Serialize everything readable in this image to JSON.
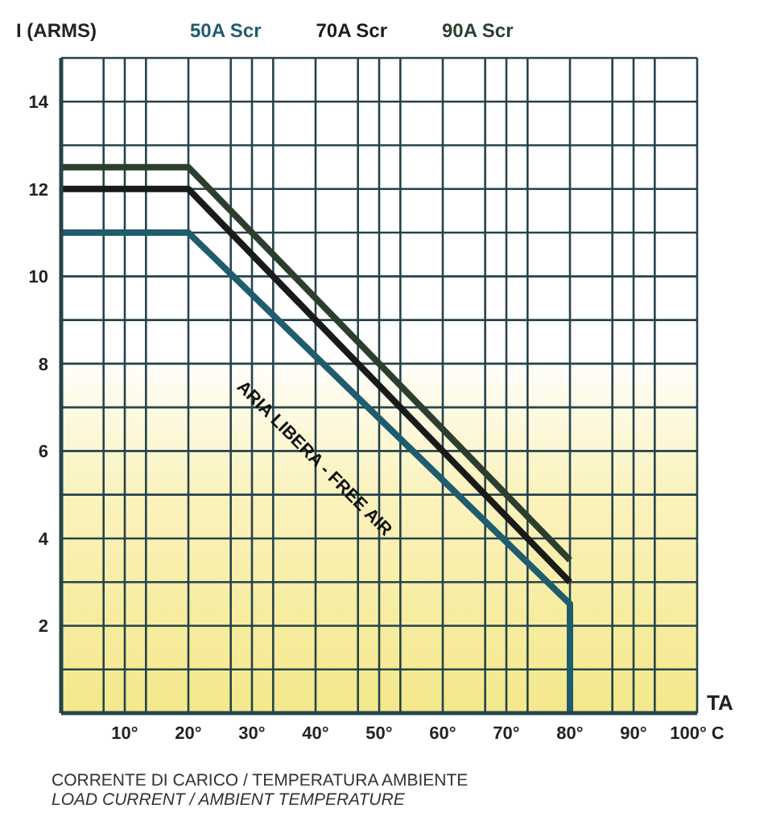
{
  "chart_data": {
    "type": "line",
    "ylabel": "I (ARMS)",
    "xlabel": "TA",
    "series": [
      {
        "name": "50A Scr",
        "color": "#1f5c6e",
        "x": [
          0,
          20,
          80,
          80
        ],
        "values": [
          11,
          11,
          2.5,
          0
        ]
      },
      {
        "name": "70A Scr",
        "color": "#1a1a1a",
        "x": [
          0,
          20,
          80
        ],
        "values": [
          12,
          12,
          3
        ]
      },
      {
        "name": "90A Scr",
        "color": "#2c3f2e",
        "x": [
          0,
          20,
          80
        ],
        "values": [
          12.5,
          12.5,
          3.5
        ]
      }
    ],
    "xlim": [
      0,
      100
    ],
    "xticks": [
      {
        "value": 6.667,
        "label": null
      },
      {
        "value": 10,
        "label": "10°"
      },
      {
        "value": 13.333,
        "label": null
      },
      {
        "value": 20,
        "label": "20°"
      },
      {
        "value": 26.667,
        "label": null
      },
      {
        "value": 30,
        "label": "30°"
      },
      {
        "value": 33.333,
        "label": null
      },
      {
        "value": 40,
        "label": "40°"
      },
      {
        "value": 46.667,
        "label": null
      },
      {
        "value": 50,
        "label": "50°"
      },
      {
        "value": 53.333,
        "label": null
      },
      {
        "value": 60,
        "label": "60°"
      },
      {
        "value": 66.667,
        "label": null
      },
      {
        "value": 70,
        "label": "70°"
      },
      {
        "value": 73.333,
        "label": null
      },
      {
        "value": 80,
        "label": "80°"
      },
      {
        "value": 86.667,
        "label": null
      },
      {
        "value": 90,
        "label": "90°"
      },
      {
        "value": 93.333,
        "label": null
      },
      {
        "value": 100,
        "label": "100° C"
      }
    ],
    "ylim": [
      0,
      15
    ],
    "yticks": [
      {
        "value": 1,
        "label": null
      },
      2,
      {
        "value": 3,
        "label": null
      },
      4,
      {
        "value": 5,
        "label": null
      },
      6,
      {
        "value": 7,
        "label": null
      },
      8,
      {
        "value": 9,
        "label": null
      },
      10,
      {
        "value": 11,
        "label": null
      },
      12,
      {
        "value": 13,
        "label": null
      },
      14,
      {
        "value": 15,
        "label": null
      }
    ],
    "grid": true,
    "legend": "top",
    "marker": "none",
    "line_style": "solid",
    "annotations": [
      "ARIA LIBERA - FREE AIR",
      "CORRENTE DI CARICO / TEMPERATURA AMBIENTE",
      "LOAD CURRENT / AMBIENT TEMPERATURE"
    ]
  }
}
